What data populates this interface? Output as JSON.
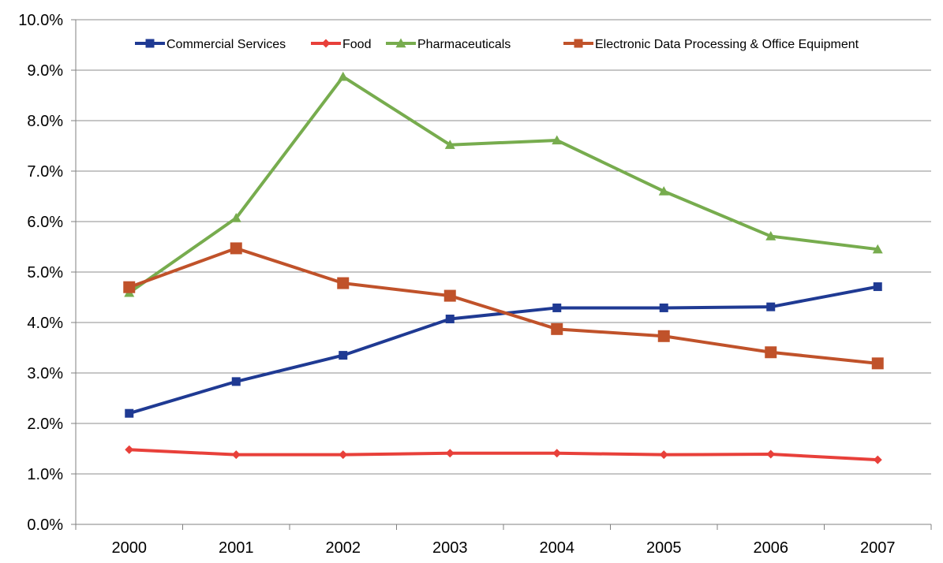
{
  "chart_data": {
    "type": "line",
    "title": "",
    "xlabel": "",
    "ylabel": "",
    "categories": [
      "2000",
      "2001",
      "2002",
      "2003",
      "2004",
      "2005",
      "2006",
      "2007"
    ],
    "ylim": [
      0,
      10
    ],
    "y_ticks": [
      0,
      1,
      2,
      3,
      4,
      5,
      6,
      7,
      8,
      9,
      10
    ],
    "y_tick_labels": [
      "0.0%",
      "1.0%",
      "2.0%",
      "3.0%",
      "4.0%",
      "5.0%",
      "6.0%",
      "7.0%",
      "8.0%",
      "9.0%",
      "10.0%"
    ],
    "grid": "horizontal",
    "legend_position": "top",
    "series": [
      {
        "name": "Commercial Services",
        "color": "#1f3a93",
        "marker": "square",
        "values": [
          2.2,
          2.83,
          3.35,
          4.07,
          4.29,
          4.29,
          4.31,
          4.71
        ]
      },
      {
        "name": "Food",
        "color": "#e8403a",
        "marker": "diamond",
        "values": [
          1.48,
          1.38,
          1.38,
          1.41,
          1.41,
          1.38,
          1.39,
          1.28
        ]
      },
      {
        "name": "Pharmaceuticals",
        "color": "#77ac4e",
        "marker": "triangle",
        "values": [
          4.59,
          6.07,
          8.87,
          7.52,
          7.61,
          6.6,
          5.71,
          5.45
        ]
      },
      {
        "name": "Electronic Data Processing & Office Equipment",
        "color": "#c0522a",
        "marker": "square-large",
        "values": [
          4.7,
          5.47,
          4.78,
          4.53,
          3.87,
          3.73,
          3.41,
          3.19
        ]
      }
    ]
  }
}
